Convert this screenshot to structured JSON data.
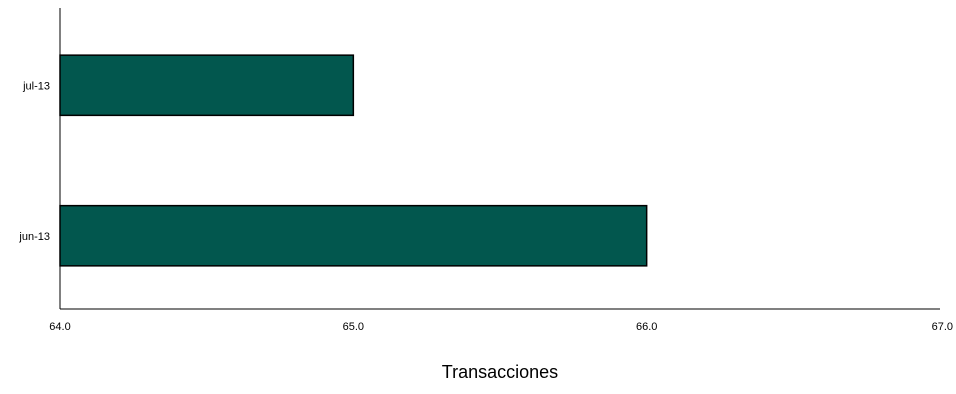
{
  "chart_data": {
    "type": "bar",
    "orientation": "horizontal",
    "categories": [
      "jul-13",
      "jun-13"
    ],
    "values": [
      65.0,
      66.0
    ],
    "xlabel": "Transacciones",
    "ylabel": "",
    "xlim": [
      64.0,
      67.0
    ],
    "x_ticks": [
      "64.0",
      "65.0",
      "66.0",
      "67.0"
    ],
    "grid": false,
    "legend": "none",
    "bar_color": "#02574E",
    "bar_edge_color": "#000000"
  }
}
